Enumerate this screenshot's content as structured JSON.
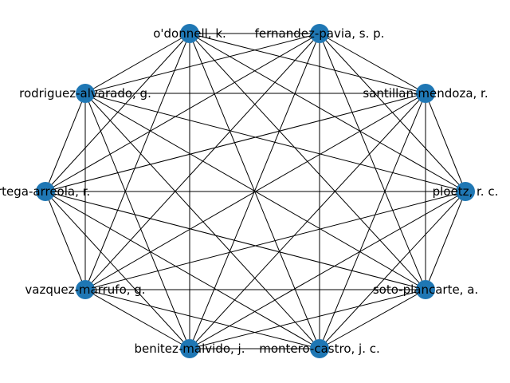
{
  "graph": {
    "edge_color": "#000000",
    "node_color": "#1f77b4",
    "complete": true,
    "nodes": [
      {
        "id": "fernandez",
        "label": "fernandez-pavia, s. p."
      },
      {
        "id": "odonnell",
        "label": "o'donnell, k."
      },
      {
        "id": "rodriguez",
        "label": "rodriguez-alvarado, g."
      },
      {
        "id": "ortega",
        "label": "ortega-arreola, r."
      },
      {
        "id": "vazquez",
        "label": "vazquez-marrufo, g."
      },
      {
        "id": "benitez",
        "label": "benitez-malvido, j."
      },
      {
        "id": "montero",
        "label": "montero-castro, j. c."
      },
      {
        "id": "soto",
        "label": "soto-plancarte, a."
      },
      {
        "id": "ploetz",
        "label": "ploetz, r. c."
      },
      {
        "id": "santillan",
        "label": "santillan-mendoza, r."
      }
    ]
  }
}
